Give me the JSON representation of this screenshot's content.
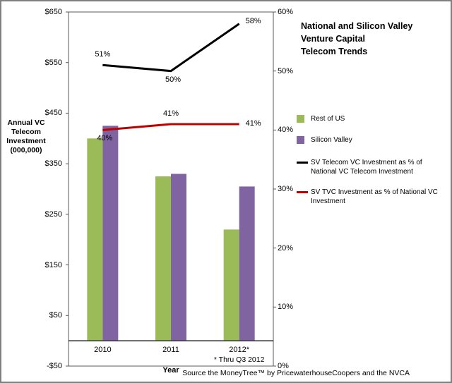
{
  "chart_data": {
    "type": "combo",
    "title": "National and Silicon Valley Venture Capital Telecom Trends",
    "title_lines": [
      "National and Silicon Valley",
      "Venture Capital",
      "Telecom Trends"
    ],
    "categories": [
      "2010",
      "2011",
      "2012*"
    ],
    "bar_series": [
      {
        "name": "Rest of US",
        "color": "#9bbb59",
        "values": [
          400,
          325,
          220
        ]
      },
      {
        "name": "Silicon Valley",
        "color": "#8064a2",
        "values": [
          425,
          330,
          305
        ]
      }
    ],
    "line_series": [
      {
        "name": "SV Telecom VC Investment as % of National VC Telecom Investment",
        "color": "#000000",
        "values": [
          51,
          50,
          58
        ],
        "labels": [
          "51%",
          "50%",
          "58%"
        ],
        "label_placements": [
          "above",
          "below",
          "right-up"
        ]
      },
      {
        "name": "SV TVC Investment as % of National VC Investment",
        "color": "#c00000",
        "values": [
          40,
          41,
          41
        ],
        "labels": [
          "40%",
          "41%",
          "41%"
        ],
        "label_placements": [
          "below",
          "above",
          "right"
        ]
      }
    ],
    "left_axis": {
      "title": "Annual VC Telecom Investment (000,000)",
      "title_lines": [
        "Annual VC",
        "Telecom",
        "Investment",
        "(000,000)"
      ],
      "min": -50,
      "max": 650,
      "step": 100,
      "tick_labels": [
        "$650",
        "$550",
        "$450",
        "$350",
        "$250",
        "$150",
        "$50",
        "-$50"
      ]
    },
    "right_axis": {
      "min": 0,
      "max": 60,
      "step": 10,
      "tick_labels": [
        "60%",
        "50%",
        "40%",
        "30%",
        "20%",
        "10%",
        "0%"
      ]
    },
    "x_axis": {
      "title": "Year",
      "note": "* Thru Q3 2012"
    },
    "legend_position": "right",
    "grid": false,
    "source": "Source the MoneyTree™ by PricewaterhouseCoopers and the NVCA"
  }
}
